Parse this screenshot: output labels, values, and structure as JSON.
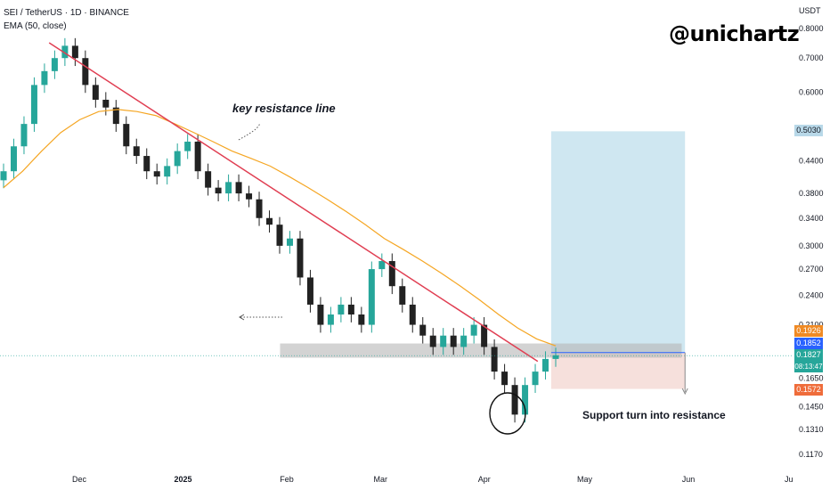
{
  "header": {
    "symbol_line": "SEI / TetherUS · 1D · BINANCE",
    "indicator_line": "EMA (50, close)"
  },
  "watermark": "@unichartz",
  "annotations": {
    "resistance_label": "key resistance line",
    "support_label": "Support turn into resistance"
  },
  "price_tags": {
    "target": "0.5030",
    "ema": "0.1926",
    "level": "0.1852",
    "current": "0.1827",
    "countdown": "08:13:47",
    "stop": "0.1572"
  },
  "colors": {
    "up": "#26a69a",
    "down": "#222222",
    "ema": "#f5a623",
    "trendline": "#e03e52",
    "target_zone": "#cfe7f1",
    "stop_zone": "#f6e0dc",
    "support_band": "#b5b5b5",
    "tag_target": "#b8d8e8",
    "tag_ema": "#f08a24",
    "tag_level": "#2962ff",
    "tag_current": "#26a69a",
    "tag_stop": "#ef6c3a"
  },
  "chart_data": {
    "type": "candlestick",
    "unit": "USDT",
    "y_scale": "log",
    "y_ticks": [
      "0.8000",
      "0.7000",
      "0.6000",
      "0.4400",
      "0.3800",
      "0.3400",
      "0.3000",
      "0.2700",
      "0.2400",
      "0.2100",
      "0.1650",
      "0.1450",
      "0.1310",
      "0.1170"
    ],
    "x_ticks": [
      "Dec",
      "2025",
      "Feb",
      "Mar",
      "Apr",
      "May",
      "Jun",
      "Ju"
    ],
    "ylim": [
      0.11,
      0.85
    ],
    "trendline": {
      "from": {
        "date": "2024-11-22",
        "price": 0.75
      },
      "to": {
        "date": "2025-04-17",
        "price": 0.178
      }
    },
    "support_zone": {
      "low": 0.181,
      "high": 0.193
    },
    "position": {
      "entry": 0.1852,
      "target": 0.503,
      "stop": 0.1572
    },
    "ema_50": [
      0.39,
      0.42,
      0.46,
      0.5,
      0.53,
      0.55,
      0.555,
      0.55,
      0.54,
      0.52,
      0.5,
      0.48,
      0.46,
      0.445,
      0.43,
      0.41,
      0.39,
      0.37,
      0.35,
      0.33,
      0.31,
      0.295,
      0.28,
      0.265,
      0.25,
      0.235,
      0.22,
      0.207,
      0.197,
      0.191
    ],
    "closes": [
      0.42,
      0.47,
      0.52,
      0.62,
      0.66,
      0.7,
      0.74,
      0.7,
      0.62,
      0.58,
      0.56,
      0.52,
      0.47,
      0.45,
      0.42,
      0.41,
      0.43,
      0.46,
      0.48,
      0.42,
      0.39,
      0.38,
      0.4,
      0.38,
      0.37,
      0.34,
      0.33,
      0.3,
      0.31,
      0.26,
      0.23,
      0.21,
      0.22,
      0.23,
      0.22,
      0.21,
      0.27,
      0.28,
      0.25,
      0.23,
      0.21,
      0.2,
      0.19,
      0.2,
      0.19,
      0.2,
      0.21,
      0.19,
      0.17,
      0.16,
      0.14,
      0.16,
      0.17,
      0.18,
      0.183
    ]
  }
}
